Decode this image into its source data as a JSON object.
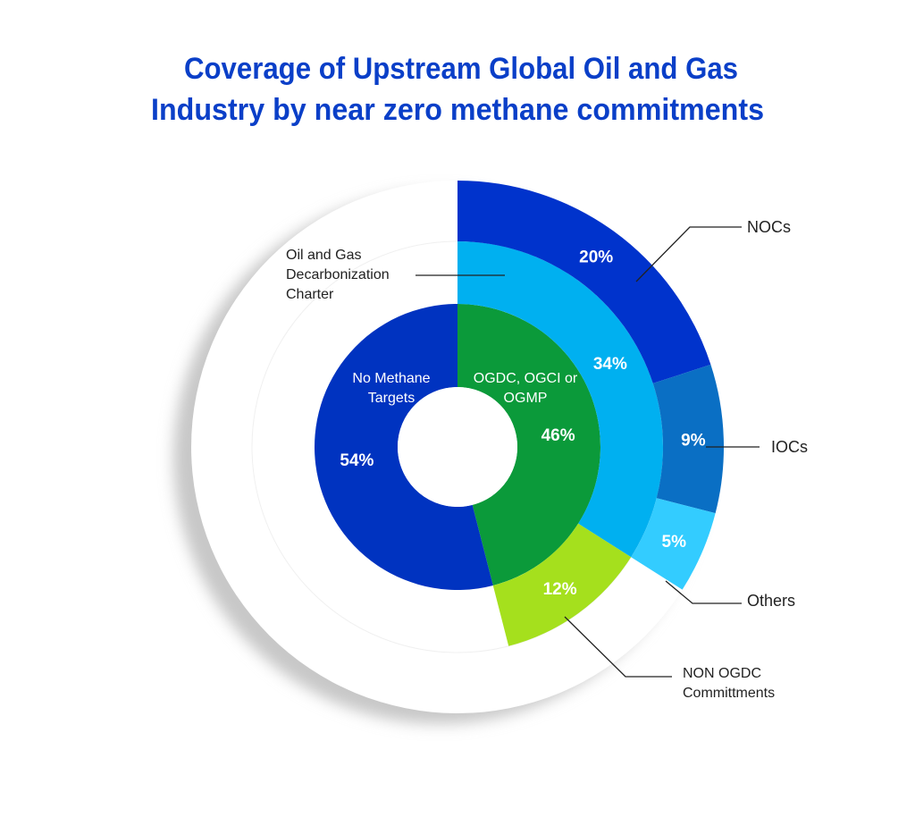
{
  "chart_data": {
    "type": "donut",
    "title": [
      "Coverage of Upstream Global Oil and Gas",
      "Industry by near zero methane commitments"
    ],
    "title_color": "#0a3fc8",
    "rings": [
      {
        "categories": [
          "OGDC, OGCI or OGMP",
          "No Methane Targets"
        ],
        "values": [
          46,
          54
        ],
        "value_labels": [
          "46%",
          "54%"
        ],
        "colors": [
          "#0b9a3a",
          "#0033c0"
        ]
      },
      {
        "categories": [
          "Oil and Gas Decarbonization Charter",
          "NON OGDC Committments"
        ],
        "values": [
          34,
          12
        ],
        "value_labels": [
          "34%",
          "12%"
        ],
        "colors": [
          "#00b0f0",
          "#a5e01d"
        ]
      },
      {
        "categories": [
          "NOCs",
          "IOCs",
          "Others"
        ],
        "values": [
          20,
          9,
          5
        ],
        "value_labels": [
          "20%",
          "9%",
          "5%"
        ],
        "colors": [
          "#0033cc",
          "#0a6fc4",
          "#33ccff"
        ]
      }
    ]
  }
}
